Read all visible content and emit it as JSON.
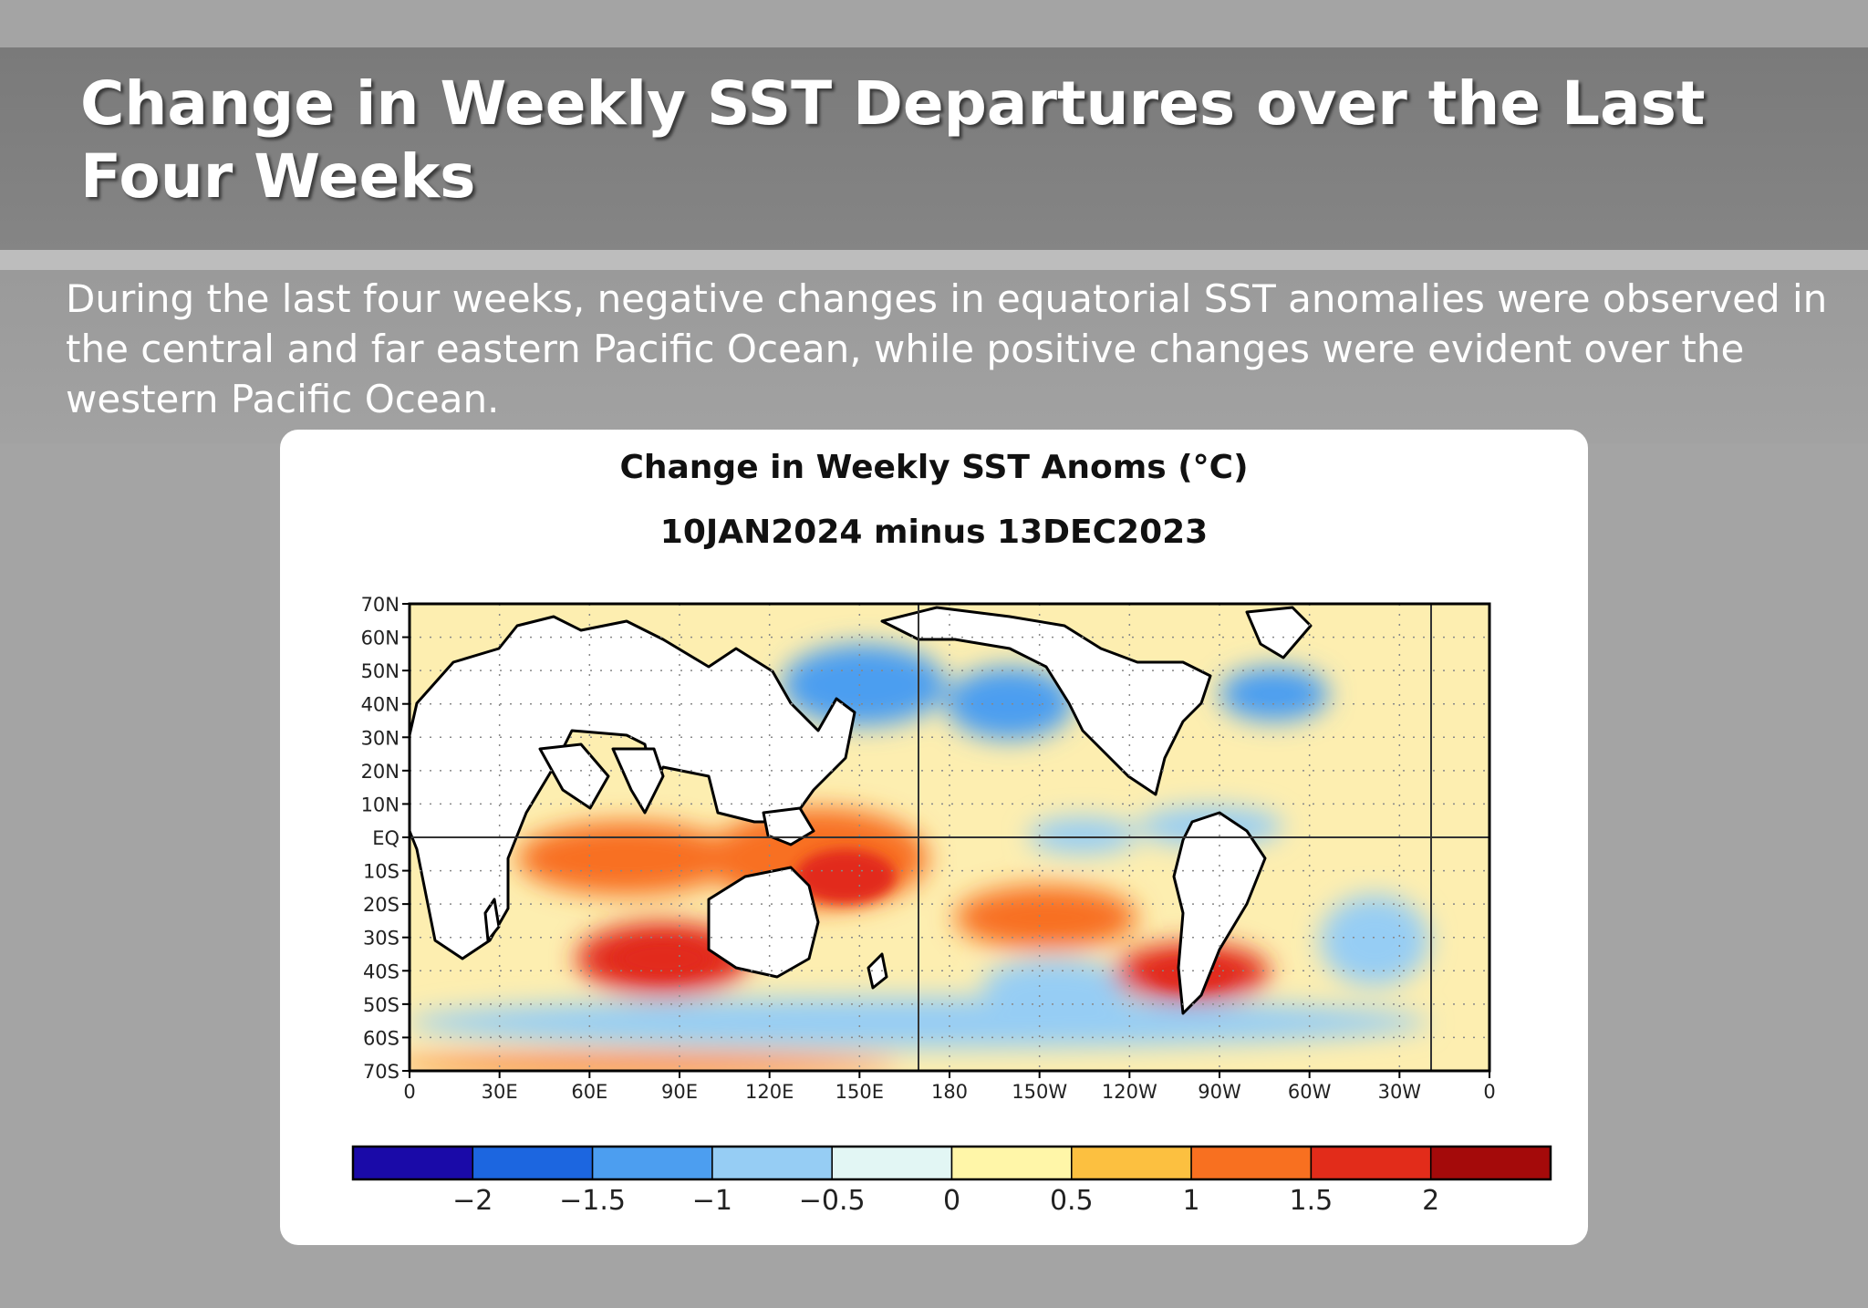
{
  "slide": {
    "title": "Change in Weekly SST Departures over the Last Four Weeks",
    "description": "During the last four weeks, negative changes in equatorial SST anomalies were observed in the central and far eastern Pacific Ocean, while positive changes were evident over the western Pacific Ocean."
  },
  "map": {
    "title": "Change in Weekly SST Anoms (°C)",
    "subtitle": "10JAN2024 minus 13DEC2023",
    "lat_ticks": [
      "70N",
      "60N",
      "50N",
      "40N",
      "30N",
      "20N",
      "10N",
      "EQ",
      "10S",
      "20S",
      "30S",
      "40S",
      "50S",
      "60S",
      "70S"
    ],
    "lon_ticks": [
      "0",
      "30E",
      "60E",
      "90E",
      "120E",
      "150E",
      "180",
      "150W",
      "120W",
      "90W",
      "60W",
      "30W",
      "0"
    ],
    "colorbar": {
      "colors": [
        "#1a0aa8",
        "#1c66e0",
        "#4c9ef0",
        "#96cdf4",
        "#e2f6f4",
        "#fff6a8",
        "#fcc040",
        "#f87020",
        "#e22c1a",
        "#a40a0a"
      ],
      "labels": [
        "−2",
        "−1.5",
        "−1",
        "−0.5",
        "0",
        "0.5",
        "1",
        "1.5",
        "2"
      ]
    },
    "ocean_base": "#fdeeb0",
    "anomaly_regions": [
      {
        "name": "western-pacific-warm",
        "color": "#f87020"
      },
      {
        "name": "south-indian-warm",
        "color": "#e22c1a"
      },
      {
        "name": "southeast-pacific-warm",
        "color": "#e22c1a"
      },
      {
        "name": "south-pacific-warm",
        "color": "#f87020"
      },
      {
        "name": "north-pacific-cool",
        "color": "#4c9ef0"
      },
      {
        "name": "southern-ocean-cool",
        "color": "#96cdf4"
      },
      {
        "name": "equatorial-east-pacific-cool",
        "color": "#96cdf4"
      }
    ]
  }
}
